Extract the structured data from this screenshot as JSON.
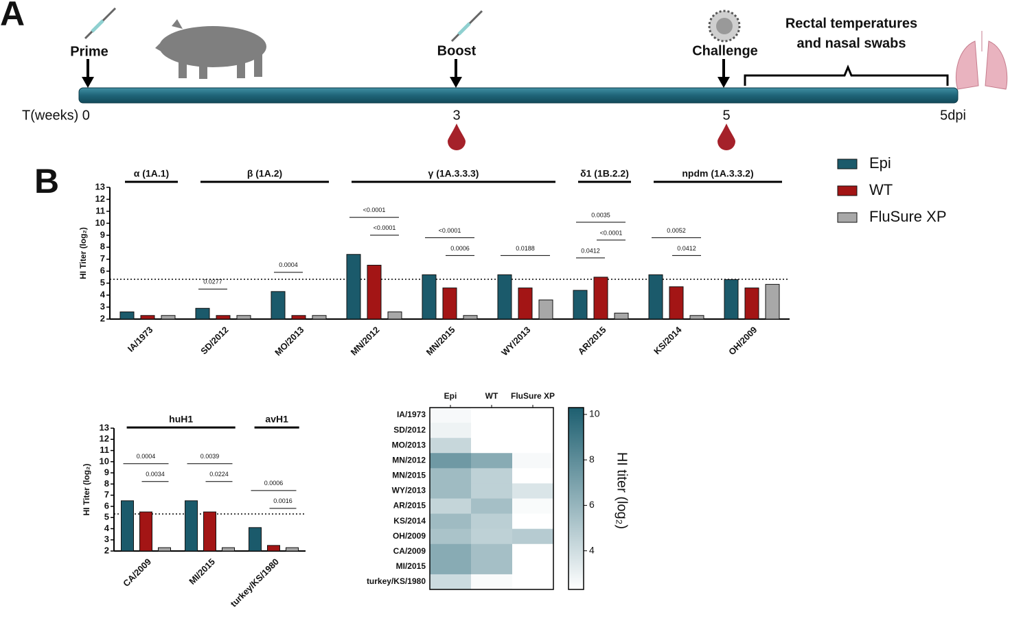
{
  "panel_labels": [
    "A",
    "B"
  ],
  "timeline": {
    "events": [
      "Prime",
      "Boost",
      "Challenge"
    ],
    "note": [
      "Rectal temperatures",
      "and nasal swabs"
    ],
    "axis_labels": [
      "T(weeks) 0",
      "3",
      "5",
      "5dpi"
    ]
  },
  "chart_data": [
    {
      "type": "bar",
      "ylabel": "HI Titer (log₂)",
      "categories": [
        "IA/1973",
        "SD/2012",
        "MO/2013",
        "MN/2012",
        "MN/2015",
        "WY/2013",
        "AR/2015",
        "KS/2014",
        "OH/2009"
      ],
      "groups": [
        {
          "label": "α (1A.1)",
          "categories": [
            "IA/1973"
          ]
        },
        {
          "label": "β (1A.2)",
          "categories": [
            "SD/2012",
            "MO/2013"
          ]
        },
        {
          "label": "γ (1A.3.3.3)",
          "categories": [
            "MN/2012",
            "MN/2015",
            "WY/2013"
          ]
        },
        {
          "label": "δ1 (1B.2.2)",
          "categories": [
            "AR/2015"
          ]
        },
        {
          "label": "npdm (1A.3.3.2)",
          "categories": [
            "KS/2014",
            "OH/2009"
          ]
        }
      ],
      "series": [
        {
          "name": "Epi",
          "color": "#1b5a6b",
          "values": [
            2.6,
            2.9,
            4.3,
            7.4,
            5.7,
            5.7,
            4.4,
            5.7,
            5.3
          ]
        },
        {
          "name": "WT",
          "color": "#a31515",
          "values": [
            2.3,
            2.3,
            2.3,
            6.5,
            4.6,
            4.6,
            5.5,
            4.7,
            4.6
          ]
        },
        {
          "name": "FluSure XP",
          "color": "#a8a8a8",
          "values": [
            2.3,
            2.3,
            2.3,
            2.6,
            2.3,
            3.6,
            2.5,
            2.3,
            4.9
          ]
        }
      ],
      "annotations": [
        {
          "text": "0.0277",
          "category": "SD/2012",
          "from": "Epi",
          "to": "WT"
        },
        {
          "text": "0.0004",
          "category": "MO/2013",
          "from": "Epi",
          "to": "WT"
        },
        {
          "text": "<0.0001",
          "category": "MN/2012",
          "from": "Epi",
          "to": "FluSure XP"
        },
        {
          "text": "<0.0001",
          "category": "MN/2012",
          "from": "WT",
          "to": "FluSure XP"
        },
        {
          "text": "<0.0001",
          "category": "MN/2015",
          "from": "Epi",
          "to": "FluSure XP"
        },
        {
          "text": "0.0006",
          "category": "MN/2015",
          "from": "WT",
          "to": "FluSure XP"
        },
        {
          "text": "0.0188",
          "category": "WY/2013",
          "from": "Epi",
          "to": "FluSure XP"
        },
        {
          "text": "0.0035",
          "category": "AR/2015",
          "from": "Epi",
          "to": "FluSure XP"
        },
        {
          "text": "<0.0001",
          "category": "AR/2015",
          "from": "WT",
          "to": "FluSure XP"
        },
        {
          "text": "0.0412",
          "category": "AR/2015",
          "from": "Epi",
          "to": "WT"
        },
        {
          "text": "0.0052",
          "category": "KS/2014",
          "from": "Epi",
          "to": "FluSure XP"
        },
        {
          "text": "0.0412",
          "category": "KS/2014",
          "from": "WT",
          "to": "FluSure XP"
        }
      ],
      "threshold": 5.32,
      "ylim": [
        2,
        13
      ],
      "yticks": [
        2,
        3,
        4,
        5,
        6,
        7,
        8,
        9,
        10,
        11,
        12,
        13
      ],
      "legend": "right"
    },
    {
      "type": "bar",
      "ylabel": "HI Titer (log₂)",
      "categories": [
        "CA/2009",
        "MI/2015",
        "turkey/KS/1980"
      ],
      "groups": [
        {
          "label": "huH1",
          "categories": [
            "CA/2009",
            "MI/2015"
          ]
        },
        {
          "label": "avH1",
          "categories": [
            "turkey/KS/1980"
          ]
        }
      ],
      "series": [
        {
          "name": "Epi",
          "color": "#1b5a6b",
          "values": [
            6.5,
            6.5,
            4.1
          ]
        },
        {
          "name": "WT",
          "color": "#a31515",
          "values": [
            5.5,
            5.5,
            2.5
          ]
        },
        {
          "name": "FluSure XP",
          "color": "#a8a8a8",
          "values": [
            2.3,
            2.3,
            2.3
          ]
        }
      ],
      "annotations": [
        {
          "text": "0.0004",
          "category": "CA/2009",
          "from": "Epi",
          "to": "FluSure XP"
        },
        {
          "text": "0.0034",
          "category": "CA/2009",
          "from": "WT",
          "to": "FluSure XP"
        },
        {
          "text": "0.0039",
          "category": "MI/2015",
          "from": "Epi",
          "to": "FluSure XP"
        },
        {
          "text": "0.0224",
          "category": "MI/2015",
          "from": "WT",
          "to": "FluSure XP"
        },
        {
          "text": "0.0006",
          "category": "turkey/KS/1980",
          "from": "Epi",
          "to": "FluSure XP"
        },
        {
          "text": "0.0016",
          "category": "turkey/KS/1980",
          "from": "WT",
          "to": "FluSure XP"
        }
      ],
      "threshold": 5.32,
      "ylim": [
        2,
        13
      ],
      "yticks": [
        2,
        3,
        4,
        5,
        6,
        7,
        8,
        9,
        10,
        11,
        12,
        13
      ]
    },
    {
      "type": "heatmap",
      "colorbar_label": "HI titer (log₂)",
      "rows": [
        "IA/1973",
        "SD/2012",
        "MO/2013",
        "MN/2012",
        "MN/2015",
        "WY/2013",
        "AR/2015",
        "KS/2014",
        "OH/2009",
        "CA/2009",
        "MI/2015",
        "turkey/KS/1980"
      ],
      "columns": [
        "Epi",
        "WT",
        "FluSure XP"
      ],
      "values": [
        [
          2.6,
          2.3,
          2.3
        ],
        [
          2.9,
          2.3,
          2.3
        ],
        [
          4.3,
          2.3,
          2.3
        ],
        [
          7.4,
          6.5,
          2.6
        ],
        [
          5.7,
          4.6,
          2.3
        ],
        [
          5.7,
          4.6,
          3.6
        ],
        [
          4.4,
          5.5,
          2.5
        ],
        [
          5.7,
          4.7,
          2.3
        ],
        [
          5.3,
          4.6,
          4.9
        ],
        [
          6.5,
          5.5,
          2.3
        ],
        [
          6.5,
          5.5,
          2.3
        ],
        [
          4.1,
          2.5,
          2.3
        ]
      ],
      "zlim": [
        2.3,
        10.3
      ],
      "zticks": [
        4,
        6,
        8,
        10
      ],
      "colors": [
        "#ffffff",
        "#1d5f70"
      ]
    }
  ]
}
